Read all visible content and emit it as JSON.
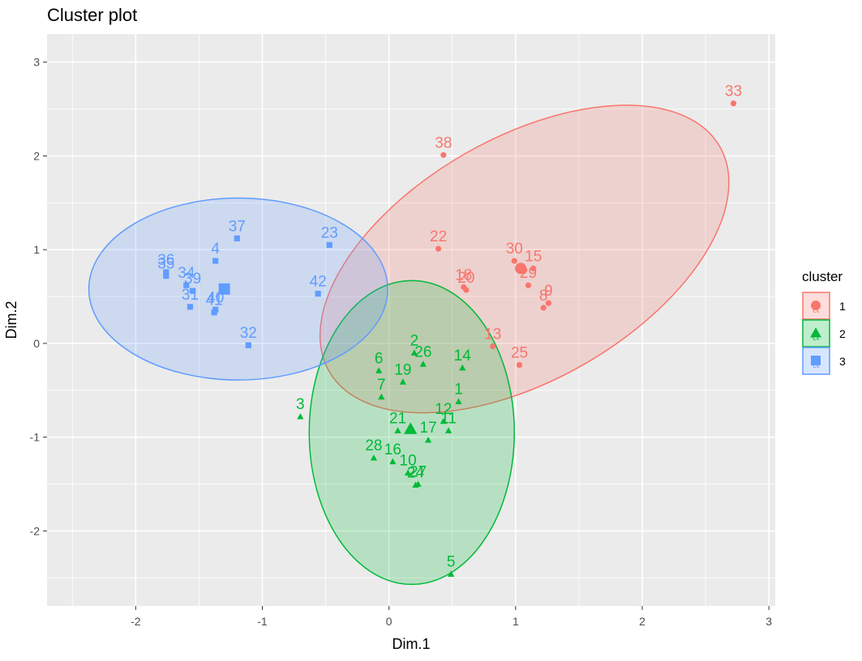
{
  "chart_data": {
    "type": "scatter",
    "title": "Cluster plot",
    "xlabel": "Dim.1",
    "ylabel": "Dim.2",
    "xlim": [
      -2.7,
      3.05
    ],
    "ylim": [
      -2.8,
      3.3
    ],
    "x_ticks": [
      -2,
      -1,
      0,
      1,
      2,
      3
    ],
    "y_ticks": [
      -2,
      -1,
      0,
      1,
      2,
      3
    ],
    "x_tick_labels": [
      "-2",
      "-1",
      "0",
      "1",
      "2",
      "3"
    ],
    "y_tick_labels": [
      "-2",
      "-1",
      "0",
      "1",
      "2",
      "3"
    ],
    "grid": true,
    "background": "#EBEBEB",
    "legend": {
      "title": "cluster",
      "placement": "right",
      "entries": [
        {
          "label": "1",
          "glyph": "a",
          "shape": "circle",
          "color": "#F8766D"
        },
        {
          "label": "2",
          "glyph": "a",
          "shape": "triangle",
          "color": "#00BA38"
        },
        {
          "label": "3",
          "glyph": "a",
          "shape": "square",
          "color": "#619CFF"
        }
      ]
    },
    "series": [
      {
        "name": "1",
        "shape": "circle",
        "color": "#F8766D",
        "points": [
          {
            "label": "33",
            "x": 2.72,
            "y": 2.56
          },
          {
            "label": "38",
            "x": 0.43,
            "y": 2.01
          },
          {
            "label": "22",
            "x": 0.39,
            "y": 1.01
          },
          {
            "label": "30",
            "x": 0.99,
            "y": 0.88
          },
          {
            "label": "15",
            "x": 1.14,
            "y": 0.8
          },
          {
            "label": "29",
            "x": 1.1,
            "y": 0.62
          },
          {
            "label": "18",
            "x": 0.59,
            "y": 0.6
          },
          {
            "label": "20",
            "x": 0.61,
            "y": 0.57
          },
          {
            "label": "9",
            "x": 1.26,
            "y": 0.43
          },
          {
            "label": "8",
            "x": 1.22,
            "y": 0.38
          },
          {
            "label": "13",
            "x": 0.82,
            "y": -0.03
          },
          {
            "label": "25",
            "x": 1.03,
            "y": -0.23
          }
        ],
        "centroid": {
          "x": 1.04,
          "y": 0.8
        },
        "ellipse": {
          "cx": 1.07,
          "cy": 0.9,
          "rx": 1.78,
          "ry": 1.29,
          "angle_deg": 30
        }
      },
      {
        "name": "2",
        "shape": "triangle",
        "color": "#00BA38",
        "points": [
          {
            "label": "2",
            "x": 0.2,
            "y": -0.1
          },
          {
            "label": "26",
            "x": 0.27,
            "y": -0.22
          },
          {
            "label": "14",
            "x": 0.58,
            "y": -0.26
          },
          {
            "label": "6",
            "x": -0.08,
            "y": -0.29
          },
          {
            "label": "7",
            "x": -0.06,
            "y": -0.57
          },
          {
            "label": "19",
            "x": 0.11,
            "y": -0.41
          },
          {
            "label": "1",
            "x": 0.55,
            "y": -0.62
          },
          {
            "label": "3",
            "x": -0.7,
            "y": -0.78
          },
          {
            "label": "12",
            "x": 0.43,
            "y": -0.83
          },
          {
            "label": "11",
            "x": 0.47,
            "y": -0.93
          },
          {
            "label": "21",
            "x": 0.07,
            "y": -0.93
          },
          {
            "label": "17",
            "x": 0.31,
            "y": -1.03
          },
          {
            "label": "28",
            "x": -0.12,
            "y": -1.22
          },
          {
            "label": "16",
            "x": 0.03,
            "y": -1.26
          },
          {
            "label": "10",
            "x": 0.15,
            "y": -1.38
          },
          {
            "label": "24",
            "x": 0.21,
            "y": -1.51
          },
          {
            "label": "27",
            "x": 0.23,
            "y": -1.5
          },
          {
            "label": "5",
            "x": 0.49,
            "y": -2.46
          }
        ],
        "centroid": {
          "x": 0.17,
          "y": -0.91
        },
        "ellipse": {
          "cx": 0.18,
          "cy": -0.95,
          "rx": 0.81,
          "ry": 1.62,
          "angle_deg": 0
        }
      },
      {
        "name": "3",
        "shape": "square",
        "color": "#619CFF",
        "points": [
          {
            "label": "37",
            "x": -1.2,
            "y": 1.12
          },
          {
            "label": "23",
            "x": -0.47,
            "y": 1.05
          },
          {
            "label": "4",
            "x": -1.37,
            "y": 0.88
          },
          {
            "label": "36",
            "x": -1.76,
            "y": 0.76
          },
          {
            "label": "35",
            "x": -1.76,
            "y": 0.72
          },
          {
            "label": "34",
            "x": -1.6,
            "y": 0.62
          },
          {
            "label": "39",
            "x": -1.55,
            "y": 0.56
          },
          {
            "label": "40",
            "x": -1.37,
            "y": 0.36
          },
          {
            "label": "31",
            "x": -1.57,
            "y": 0.39
          },
          {
            "label": "41",
            "x": -1.38,
            "y": 0.33
          },
          {
            "label": "42",
            "x": -0.56,
            "y": 0.53
          },
          {
            "label": "32",
            "x": -1.11,
            "y": -0.02
          }
        ],
        "centroid": {
          "x": -1.3,
          "y": 0.58
        },
        "ellipse": {
          "cx": -1.19,
          "cy": 0.58,
          "rx": 1.18,
          "ry": 0.97,
          "angle_deg": 0
        }
      }
    ]
  }
}
